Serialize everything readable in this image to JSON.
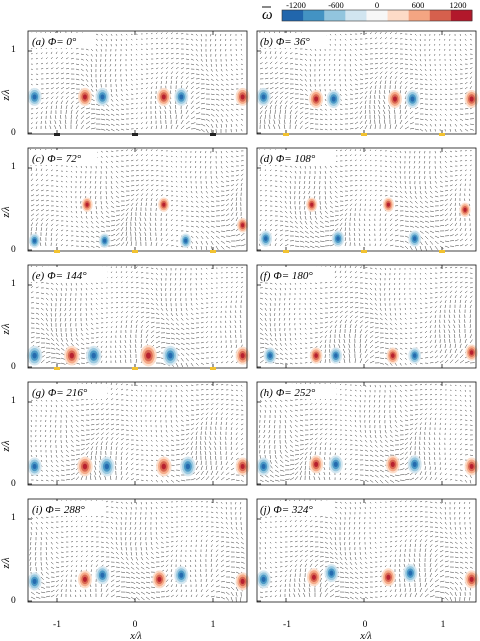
{
  "figure": {
    "colorbar": {
      "symbol": "ω",
      "ticks": [
        "-1200",
        "-600",
        "0",
        "600",
        "1200"
      ],
      "colors": [
        "#2166ac",
        "#4393c3",
        "#92c5de",
        "#d1e5f0",
        "#f7f7f7",
        "#fddbc7",
        "#f4a582",
        "#d6604d",
        "#b2182b"
      ]
    },
    "x_label": "x/λ",
    "y_label": "z/λ",
    "x_ticks": [
      "-1",
      "0",
      "1"
    ],
    "y_ticks": [
      "0",
      "1"
    ],
    "panels": [
      {
        "tag": "(a)",
        "phase": "Φ= 0°"
      },
      {
        "tag": "(b)",
        "phase": "Φ= 36°"
      },
      {
        "tag": "(c)",
        "phase": "Φ= 72°"
      },
      {
        "tag": "(d)",
        "phase": "Φ= 108°"
      },
      {
        "tag": "(e)",
        "phase": "Φ= 144°"
      },
      {
        "tag": "(f)",
        "phase": "Φ= 180°"
      },
      {
        "tag": "(g)",
        "phase": "Φ= 216°"
      },
      {
        "tag": "(h)",
        "phase": "Φ= 252°"
      },
      {
        "tag": "(i)",
        "phase": "Φ= 288°"
      },
      {
        "tag": "(j)",
        "phase": "Φ= 324°"
      }
    ]
  }
}
